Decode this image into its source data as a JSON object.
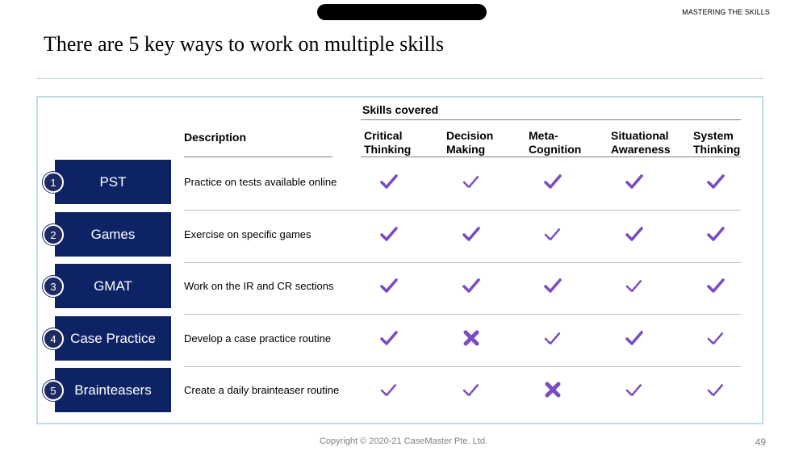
{
  "header": {
    "section_tag": "MASTERING THE SKILLS",
    "title": "There are 5 key ways to work on multiple skills"
  },
  "table": {
    "skills_covered_label": "Skills covered",
    "description_label": "Description",
    "skills": [
      {
        "label": "Critical\nThinking"
      },
      {
        "label": "Decision\nMaking"
      },
      {
        "label": "Meta-\nCognition"
      },
      {
        "label": "Situational\nAwareness"
      },
      {
        "label": "System\nThinking"
      }
    ],
    "rows": [
      {
        "num": "1",
        "name": "PST",
        "description": "Practice on tests available online",
        "marks": [
          "full",
          "partial",
          "full",
          "full",
          "full"
        ]
      },
      {
        "num": "2",
        "name": "Games",
        "description": "Exercise on specific games",
        "marks": [
          "full",
          "full",
          "partial",
          "full",
          "full"
        ]
      },
      {
        "num": "3",
        "name": "GMAT",
        "description": "Work on the IR and CR sections",
        "marks": [
          "full",
          "full",
          "full",
          "partial",
          "full"
        ]
      },
      {
        "num": "4",
        "name": "Case Practice",
        "description": "Develop a case practice routine",
        "marks": [
          "full",
          "none",
          "partial",
          "full",
          "partial"
        ]
      },
      {
        "num": "5",
        "name": "Brainteasers",
        "description": "Create a daily brainteaser routine",
        "marks": [
          "partial",
          "partial",
          "none",
          "partial",
          "partial"
        ]
      }
    ],
    "legend_semantics": {
      "full": "check-icon",
      "partial": "dashed-check-icon",
      "none": "cross-icon"
    },
    "mark_color": "#7a4cc2"
  },
  "footer": {
    "copyright": "Copyright © 2020-21 CaseMaster Pte. Ltd.",
    "page_number": "49"
  },
  "colors": {
    "navy": "#0e2366",
    "frame": "#bfdde6",
    "accent": "#7a4cc2"
  }
}
